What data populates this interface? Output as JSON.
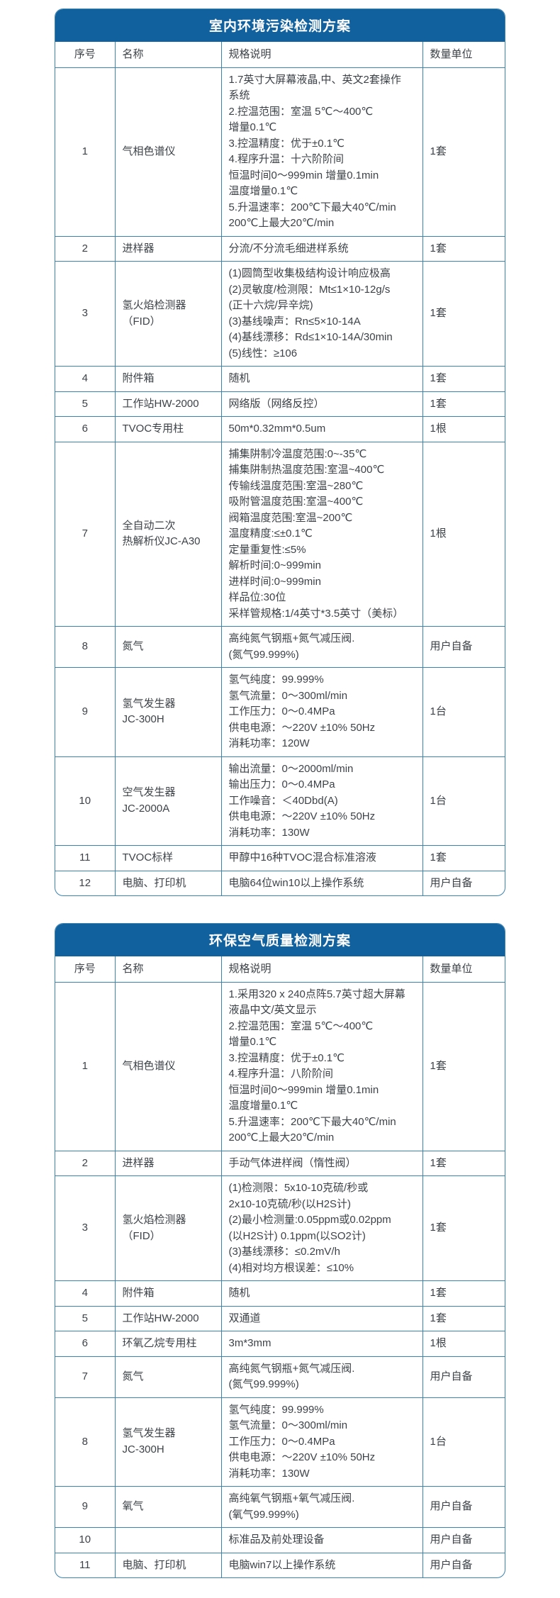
{
  "colors": {
    "header_bg": "#12619f",
    "table_border": "#3d83af",
    "text": "#3c4247",
    "page_bg": "#ffffff"
  },
  "tables": [
    {
      "title": "室内环境污染检测方案",
      "headers": [
        "序号",
        "名称",
        "规格说明",
        "数量单位"
      ],
      "rows": [
        {
          "no": "1",
          "name": "气相色谱仪",
          "spec": "1.7英寸大屏幕液晶,中、英文2套操作\n系统\n2.控温范围：室温 5℃～400℃\n增量0.1℃\n3.控温精度：优于±0.1℃\n4.程序升温：十六阶阶间\n恒温时间0～999min 增量0.1min\n温度增量0.1℃\n5.升温速率：200℃下最大40℃/min\n200℃上最大20℃/min",
          "qty": "1套"
        },
        {
          "no": "2",
          "name": "进样器",
          "spec": "分流/不分流毛细进样系统",
          "qty": "1套"
        },
        {
          "no": "3",
          "name": "氢火焰检测器（FID）",
          "spec": "(1)圆筒型收集极结构设计响应极高\n(2)灵敏度/检测限：Mt≤1×10-12g/s\n(正十六烷/异辛烷)\n(3)基线噪声：Rn≤5×10-14A\n(4)基线漂移：Rd≤1×10-14A/30min\n(5)线性：≥106",
          "qty": "1套"
        },
        {
          "no": "4",
          "name": "附件箱",
          "spec": "随机",
          "qty": "1套"
        },
        {
          "no": "5",
          "name": "工作站HW-2000",
          "spec": "网络版（网络反控）",
          "qty": "1套"
        },
        {
          "no": "6",
          "name": "TVOC专用柱",
          "spec": "50m*0.32mm*0.5um",
          "qty": "1根"
        },
        {
          "no": "7",
          "name": "全自动二次\n热解析仪JC-A30",
          "spec": "捕集阱制冷温度范围:0~-35℃\n捕集阱制热温度范围:室温~400℃\n传输线温度范围:室温~280℃\n吸附管温度范围:室温~400℃\n阀箱温度范围:室温~200℃\n温度精度:≤±0.1℃\n定量重复性:≤5%\n解析时间:0~999min\n进样时间:0~999min\n样品位:30位\n采样管规格:1/4英寸*3.5英寸（美标）",
          "qty": "1根"
        },
        {
          "no": "8",
          "name": "氮气",
          "spec": "高纯氮气钢瓶+氮气减压阀.\n(氮气99.999%)",
          "qty": "用户自备"
        },
        {
          "no": "9",
          "name": "氢气发生器\nJC-300H",
          "spec": "氢气纯度：99.999%\n氢气流量：0～300ml/min\n工作压力：0～0.4MPa\n供电电源：～220V ±10% 50Hz\n消耗功率：120W",
          "qty": "1台"
        },
        {
          "no": "10",
          "name": "空气发生器\nJC-2000A",
          "spec": "输出流量：0～2000ml/min\n输出压力：0～0.4MPa\n工作噪音：＜40Dbd(A)\n供电电源：～220V ±10% 50Hz\n消耗功率：130W",
          "qty": "1台"
        },
        {
          "no": "11",
          "name": "TVOC标样",
          "spec": "甲醇中16种TVOC混合标准溶液",
          "qty": "1套"
        },
        {
          "no": "12",
          "name": "电脑、打印机",
          "spec": "电脑64位win10以上操作系统",
          "qty": "用户自备"
        }
      ]
    },
    {
      "title": "环保空气质量检测方案",
      "headers": [
        "序号",
        "名称",
        "规格说明",
        "数量单位"
      ],
      "rows": [
        {
          "no": "1",
          "name": "气相色谱仪",
          "spec": "1.采用320 x 240点阵5.7英寸超大屏幕\n液晶中文/英文显示\n2.控温范围：室温 5℃～400℃\n增量0.1℃\n3.控温精度：优于±0.1℃\n4.程序升温：八阶阶间\n恒温时间0～999min 增量0.1min\n温度增量0.1℃\n5.升温速率：200℃下最大40℃/min\n200℃上最大20℃/min",
          "qty": "1套"
        },
        {
          "no": "2",
          "name": "进样器",
          "spec": "手动气体进样阀（惰性阀）",
          "qty": "1套"
        },
        {
          "no": "3",
          "name": "氢火焰检测器（FID）",
          "spec": "(1)检测限：5x10-10克硫/秒或\n2x10-10克硫/秒(以H2S计)\n(2)最小检测量:0.05ppm或0.02ppm\n(以H2S计) 0.1ppm(以SO2计)\n(3)基线漂移：≤0.2mV/h\n(4)相对均方根误差：≤10%",
          "qty": "1套"
        },
        {
          "no": "4",
          "name": "附件箱",
          "spec": "随机",
          "qty": "1套"
        },
        {
          "no": "5",
          "name": "工作站HW-2000",
          "spec": "双通道",
          "qty": "1套"
        },
        {
          "no": "6",
          "name": "环氧乙烷专用柱",
          "spec": "3m*3mm",
          "qty": "1根"
        },
        {
          "no": "7",
          "name": "氮气",
          "spec": "高纯氮气钢瓶+氮气减压阀.\n(氮气99.999%)",
          "qty": "用户自备"
        },
        {
          "no": "8",
          "name": "氢气发生器\nJC-300H",
          "spec": "氢气纯度：99.999%\n氢气流量：0～300ml/min\n工作压力：0～0.4MPa\n供电电源：～220V ±10% 50Hz\n消耗功率：130W",
          "qty": "1台"
        },
        {
          "no": "9",
          "name": "氧气",
          "spec": "高纯氧气钢瓶+氧气减压阀.\n(氧气99.999%)",
          "qty": "用户自备"
        },
        {
          "no": "10",
          "name": "",
          "spec": "标准品及前处理设备",
          "qty": "用户自备"
        },
        {
          "no": "11",
          "name": "电脑、打印机",
          "spec": "电脑win7以上操作系统",
          "qty": "用户自备"
        }
      ]
    }
  ]
}
